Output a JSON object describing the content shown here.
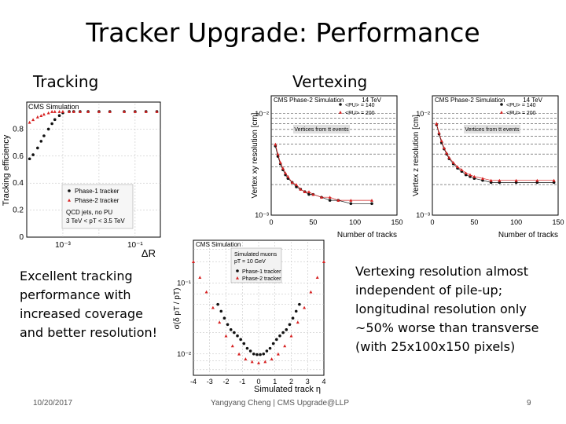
{
  "slide": {
    "title": "Tracker Upgrade: Performance",
    "section_tracking": "Tracking",
    "section_vertexing": "Vertexing",
    "left_text_lines": [
      "Excellent tracking",
      "performance with",
      "increased coverage",
      "and better resolution!"
    ],
    "right_text_lines": [
      "Vertexing resolution almost",
      "independent of pile-up;",
      "longitudinal resolution only",
      "~50% worse than transverse",
      "(with 25x100x150 pixels)"
    ]
  },
  "footer": {
    "date": "10/20/2017",
    "author": "Yangyang Cheng | CMS Upgrade@LLP",
    "page": "9"
  },
  "colors": {
    "phase1": "#111111",
    "phase2": "#d62020",
    "grid": "#bbbbbb"
  },
  "chart_data": [
    {
      "type": "scatter",
      "panel": "tracking-efficiency",
      "header": "CMS Simulation",
      "ylabel": "Tracking efficiency",
      "xlabel": "ΔR",
      "x_scale": "log",
      "ylim": [
        0,
        1
      ],
      "x_tick_labels": [
        "10⁻³",
        "10⁻¹"
      ],
      "y_tick_labels": [
        "0",
        "0.2",
        "0.4",
        "0.6",
        "0.8"
      ],
      "legend": [
        "Phase-1 tracker",
        "Phase-2 tracker"
      ],
      "annotation_lines": [
        "QCD jets, no PU",
        "3 TeV < pT < 3.5 TeV"
      ],
      "series": [
        {
          "name": "Phase-1 tracker",
          "x": [
            0.00012,
            0.00015,
            0.0002,
            0.00025,
            0.0003,
            0.0004,
            0.0005,
            0.0006,
            0.0008,
            0.001,
            0.0015,
            0.002,
            0.003,
            0.005,
            0.01,
            0.02,
            0.05,
            0.1,
            0.2,
            0.4
          ],
          "y": [
            0.58,
            0.61,
            0.66,
            0.71,
            0.75,
            0.8,
            0.84,
            0.87,
            0.9,
            0.92,
            0.93,
            0.93,
            0.93,
            0.93,
            0.93,
            0.93,
            0.93,
            0.93,
            0.93,
            0.93
          ]
        },
        {
          "name": "Phase-2 tracker",
          "x": [
            0.00012,
            0.00015,
            0.0002,
            0.00025,
            0.0003,
            0.0004,
            0.0005,
            0.0006,
            0.0008,
            0.001,
            0.0015,
            0.002,
            0.003,
            0.005,
            0.01,
            0.02,
            0.05,
            0.1,
            0.2,
            0.4
          ],
          "y": [
            0.85,
            0.87,
            0.89,
            0.9,
            0.91,
            0.92,
            0.93,
            0.93,
            0.93,
            0.93,
            0.93,
            0.93,
            0.93,
            0.93,
            0.93,
            0.93,
            0.93,
            0.93,
            0.93,
            0.93
          ]
        }
      ]
    },
    {
      "type": "scatter",
      "panel": "vertex-xy-resolution",
      "header": "CMS Phase-2 Simulation",
      "energy": "14 TeV",
      "ylabel": "Vertex xy resolution [cm]",
      "xlabel": "Number of tracks",
      "y_scale": "log",
      "xlim": [
        0,
        150
      ],
      "ylim": [
        0.001,
        0.015
      ],
      "x_tick_labels": [
        "0",
        "50",
        "100",
        "150"
      ],
      "y_tick_labels": [
        "10⁻²",
        "10⁻³"
      ],
      "legend": [
        "<PU> = 140",
        "<PU> = 200"
      ],
      "annotation": "Vertices from tt events",
      "series": [
        {
          "name": "<PU> = 140",
          "x": [
            5,
            8,
            11,
            14,
            17,
            20,
            25,
            30,
            35,
            40,
            45,
            50,
            60,
            70,
            80,
            95,
            120
          ],
          "y": [
            0.0048,
            0.0038,
            0.0032,
            0.0028,
            0.0025,
            0.0023,
            0.0021,
            0.0019,
            0.0018,
            0.0017,
            0.0016,
            0.0016,
            0.0015,
            0.0014,
            0.0014,
            0.0013,
            0.0013
          ]
        },
        {
          "name": "<PU> = 200",
          "x": [
            5,
            8,
            11,
            14,
            17,
            20,
            25,
            30,
            35,
            40,
            45,
            50,
            60,
            70,
            80,
            95,
            120
          ],
          "y": [
            0.005,
            0.004,
            0.0033,
            0.0029,
            0.0026,
            0.0024,
            0.0021,
            0.002,
            0.0018,
            0.0017,
            0.0017,
            0.0016,
            0.0015,
            0.0015,
            0.0014,
            0.0014,
            0.0014
          ]
        }
      ]
    },
    {
      "type": "scatter",
      "panel": "vertex-z-resolution",
      "header": "CMS Phase-2 Simulation",
      "energy": "14 TeV",
      "ylabel": "Vertex z resolution [cm]",
      "xlabel": "Number of tracks",
      "y_scale": "log",
      "xlim": [
        0,
        150
      ],
      "ylim": [
        0.001,
        0.015
      ],
      "x_tick_labels": [
        "0",
        "50",
        "100",
        "150"
      ],
      "y_tick_labels": [
        "10⁻²",
        "10⁻³"
      ],
      "legend": [
        "<PU> = 140",
        "<PU> = 200"
      ],
      "annotation": "Vertices from tt events",
      "series": [
        {
          "name": "<PU> = 140",
          "x": [
            5,
            8,
            11,
            14,
            17,
            20,
            25,
            30,
            35,
            40,
            45,
            50,
            60,
            70,
            80,
            100,
            125,
            145
          ],
          "y": [
            0.0078,
            0.0063,
            0.0052,
            0.0045,
            0.004,
            0.0036,
            0.0032,
            0.0029,
            0.0027,
            0.0025,
            0.0024,
            0.0023,
            0.0022,
            0.0021,
            0.0021,
            0.0021,
            0.0021,
            0.0021
          ]
        },
        {
          "name": "<PU> = 200",
          "x": [
            5,
            8,
            11,
            14,
            17,
            20,
            25,
            30,
            35,
            40,
            45,
            50,
            60,
            70,
            80,
            100,
            125,
            145
          ],
          "y": [
            0.008,
            0.0065,
            0.0054,
            0.0046,
            0.0041,
            0.0037,
            0.0033,
            0.003,
            0.0028,
            0.0026,
            0.0025,
            0.0024,
            0.0023,
            0.0022,
            0.0022,
            0.0022,
            0.0022,
            0.0022
          ]
        }
      ]
    },
    {
      "type": "scatter",
      "panel": "pt-resolution",
      "header": "CMS Simulation",
      "ylabel": "σ(δ pT / pT)",
      "xlabel": "Simulated track η",
      "y_scale": "log",
      "xlim": [
        -4,
        4
      ],
      "ylim": [
        0.005,
        0.4
      ],
      "x_tick_labels": [
        "-4",
        "-3",
        "-2",
        "-1",
        "0",
        "1",
        "2",
        "3",
        "4"
      ],
      "y_tick_labels": [
        "10⁻¹",
        "10⁻²"
      ],
      "legend": [
        "Phase-1 tracker",
        "Phase-2 tracker"
      ],
      "annotation_lines": [
        "Simulated muons",
        "pT = 10 GeV"
      ],
      "series": [
        {
          "name": "Phase-1 tracker",
          "x": [
            -2.5,
            -2.3,
            -2.1,
            -1.9,
            -1.7,
            -1.5,
            -1.3,
            -1.1,
            -0.9,
            -0.7,
            -0.5,
            -0.3,
            -0.1,
            0.1,
            0.3,
            0.5,
            0.7,
            0.9,
            1.1,
            1.3,
            1.5,
            1.7,
            1.9,
            2.1,
            2.3,
            2.5
          ],
          "y": [
            0.05,
            0.04,
            0.032,
            0.026,
            0.022,
            0.02,
            0.018,
            0.016,
            0.014,
            0.012,
            0.011,
            0.01,
            0.0098,
            0.0098,
            0.01,
            0.011,
            0.012,
            0.014,
            0.016,
            0.018,
            0.02,
            0.022,
            0.026,
            0.032,
            0.04,
            0.05
          ]
        },
        {
          "name": "Phase-2 tracker",
          "x": [
            -4.0,
            -3.6,
            -3.2,
            -2.8,
            -2.4,
            -2.0,
            -1.6,
            -1.2,
            -0.8,
            -0.4,
            0.0,
            0.4,
            0.8,
            1.2,
            1.6,
            2.0,
            2.4,
            2.8,
            3.2,
            3.6,
            4.0
          ],
          "y": [
            0.2,
            0.12,
            0.075,
            0.045,
            0.028,
            0.018,
            0.013,
            0.01,
            0.0085,
            0.0078,
            0.0075,
            0.0078,
            0.0085,
            0.01,
            0.013,
            0.018,
            0.028,
            0.045,
            0.075,
            0.12,
            0.2
          ]
        }
      ]
    }
  ]
}
